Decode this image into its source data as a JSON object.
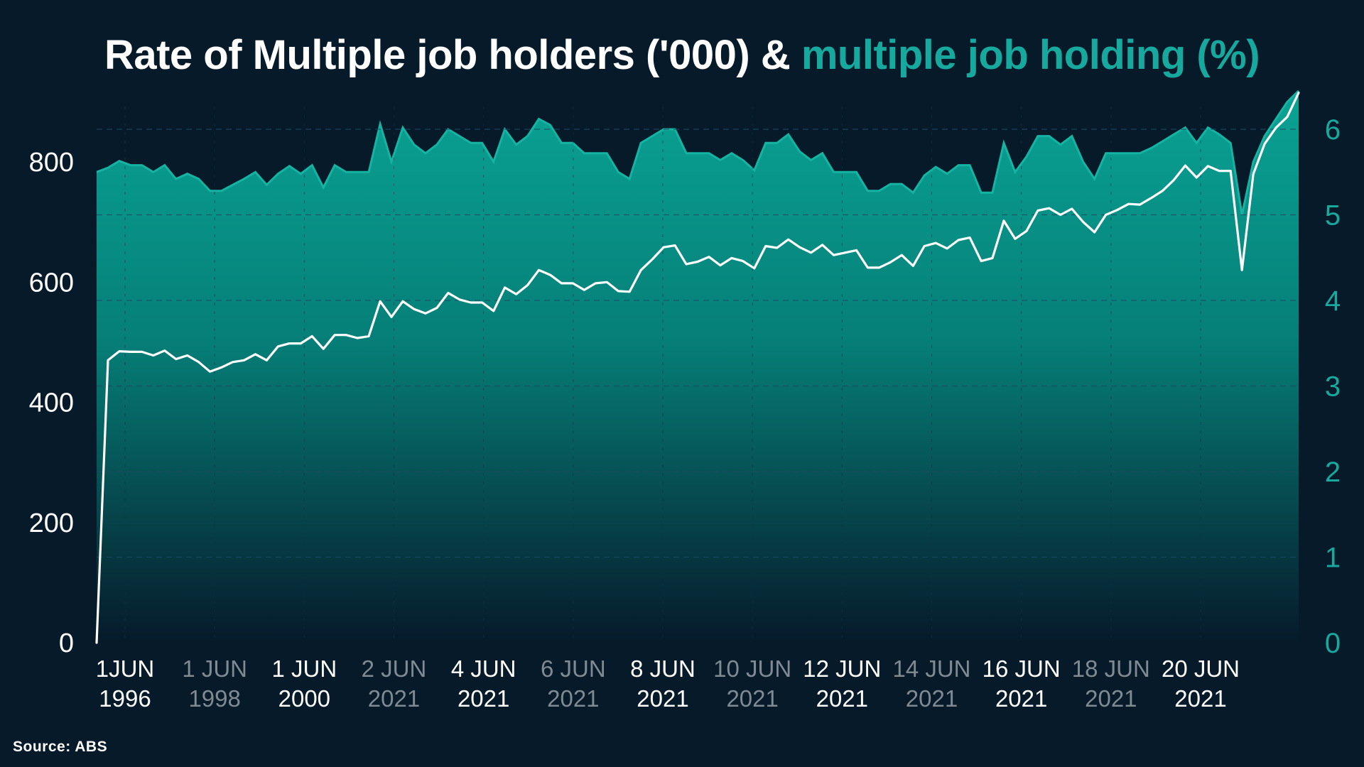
{
  "title": {
    "main": "Rate of Multiple job holders ('000) & ",
    "accent": "multiple job holding (%)"
  },
  "source": "Source: ABS",
  "colors": {
    "background": "#061a2a",
    "area_top": "#0aa394",
    "area_bottom": "#061a2a",
    "line": "#ffffff",
    "left_axis_text": "#ffffff",
    "right_axis_text": "#17a99d",
    "tick_strong": "#ffffff",
    "tick_muted": "#7f8a93"
  },
  "chart_data": {
    "type": "line",
    "title": "Rate of Multiple job holders ('000) & multiple job holding (%)",
    "x_tick_labels": [
      {
        "line1": "1JUN",
        "line2": "1996",
        "muted": false
      },
      {
        "line1": "1 JUN",
        "line2": "1998",
        "muted": true
      },
      {
        "line1": "1 JUN",
        "line2": "2000",
        "muted": false
      },
      {
        "line1": "2 JUN",
        "line2": "2021",
        "muted": true
      },
      {
        "line1": "4 JUN",
        "line2": "2021",
        "muted": false
      },
      {
        "line1": "6 JUN",
        "line2": "2021",
        "muted": true
      },
      {
        "line1": "8 JUN",
        "line2": "2021",
        "muted": false
      },
      {
        "line1": "10 JUN",
        "line2": "2021",
        "muted": true
      },
      {
        "line1": "12 JUN",
        "line2": "2021",
        "muted": false
      },
      {
        "line1": "14 JUN",
        "line2": "2021",
        "muted": true
      },
      {
        "line1": "16 JUN",
        "line2": "2021",
        "muted": false
      },
      {
        "line1": "18 JUN",
        "line2": "2021",
        "muted": true
      },
      {
        "line1": "20 JUN",
        "line2": "2021",
        "muted": false
      }
    ],
    "y_left": {
      "ticks": [
        0,
        200,
        400,
        600,
        800
      ],
      "range": [
        0,
        900
      ]
    },
    "y_right": {
      "ticks": [
        0,
        1,
        2,
        3,
        4,
        5,
        6
      ],
      "range": [
        0,
        6.4
      ]
    },
    "grid": "dashed horizontal at right-axis ticks",
    "series": [
      {
        "axis": "left",
        "style": "line",
        "values": [
          0,
          470,
          485,
          484,
          484,
          478,
          486,
          472,
          478,
          467,
          451,
          458,
          467,
          470,
          480,
          470,
          493,
          498,
          498,
          510,
          489,
          512,
          512,
          507,
          510,
          568,
          542,
          568,
          555,
          548,
          557,
          582,
          571,
          566,
          566,
          552,
          591,
          580,
          595,
          620,
          612,
          598,
          598,
          587,
          598,
          600,
          585,
          584,
          620,
          638,
          658,
          661,
          630,
          634,
          642,
          628,
          640,
          635,
          623,
          660,
          657,
          671,
          658,
          649,
          662,
          645,
          649,
          653,
          624,
          624,
          633,
          645,
          627,
          660,
          665,
          656,
          670,
          674,
          635,
          640,
          702,
          672,
          685,
          719,
          723,
          712,
          722,
          700,
          683,
          712,
          720,
          730,
          729,
          740,
          752,
          770,
          794,
          774,
          793,
          785,
          785,
          620,
          780,
          830,
          857,
          875,
          915
        ]
      },
      {
        "axis": "right",
        "style": "area",
        "values": [
          5.5,
          5.55,
          5.63,
          5.58,
          5.58,
          5.5,
          5.58,
          5.42,
          5.48,
          5.42,
          5.28,
          5.28,
          5.35,
          5.42,
          5.5,
          5.35,
          5.48,
          5.57,
          5.48,
          5.58,
          5.32,
          5.58,
          5.5,
          5.5,
          5.5,
          6.06,
          5.62,
          6.02,
          5.82,
          5.72,
          5.82,
          6.0,
          5.92,
          5.84,
          5.84,
          5.62,
          6.0,
          5.82,
          5.92,
          6.12,
          6.05,
          5.84,
          5.84,
          5.72,
          5.72,
          5.72,
          5.5,
          5.42,
          5.84,
          5.92,
          6.0,
          6.0,
          5.72,
          5.72,
          5.72,
          5.64,
          5.72,
          5.64,
          5.52,
          5.84,
          5.84,
          5.94,
          5.74,
          5.64,
          5.72,
          5.5,
          5.5,
          5.5,
          5.28,
          5.28,
          5.36,
          5.36,
          5.26,
          5.46,
          5.56,
          5.48,
          5.58,
          5.58,
          5.26,
          5.26,
          5.84,
          5.5,
          5.68,
          5.92,
          5.92,
          5.82,
          5.92,
          5.62,
          5.42,
          5.72,
          5.72,
          5.72,
          5.72,
          5.78,
          5.86,
          5.94,
          6.02,
          5.84,
          6.02,
          5.94,
          5.84,
          5.0,
          5.62,
          5.92,
          6.12,
          6.32,
          6.45
        ]
      }
    ]
  }
}
